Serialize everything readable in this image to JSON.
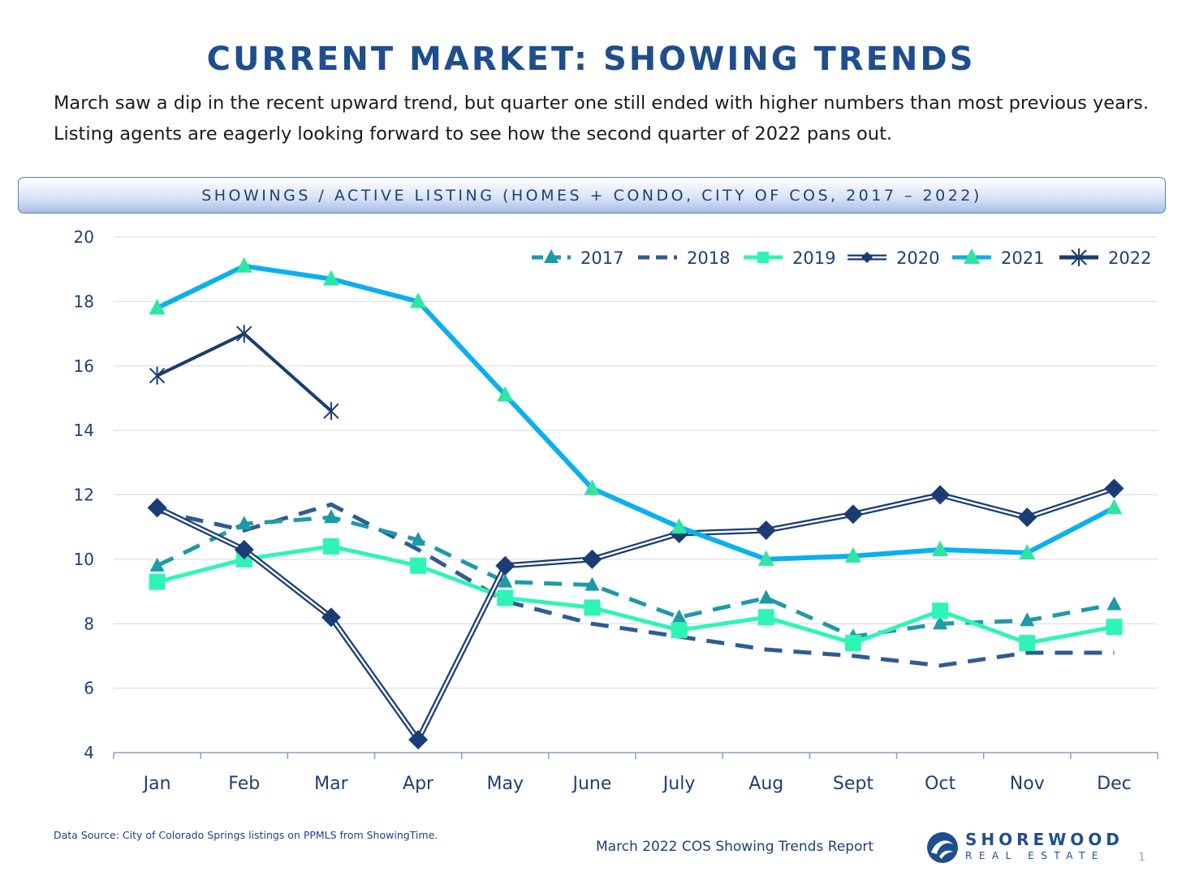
{
  "header": {
    "title": "CURRENT MARKET: SHOWING TRENDS",
    "description_line1": "March saw a dip in the recent upward trend, but quarter one still ended with higher numbers than most previous years.",
    "description_line2": "Listing agents are eagerly looking forward to see how the second quarter of 2022 pans out."
  },
  "chart_banner": "SHOWINGS / ACTIVE LISTING (HOMES + CONDO, CITY OF COS, 2017 – 2022)",
  "chart_data": {
    "type": "line",
    "title": "SHOWINGS / ACTIVE LISTING (HOMES + CONDO, CITY OF COS, 2017 – 2022)",
    "xlabel": "",
    "ylabel": "",
    "ylim": [
      4,
      20
    ],
    "yticks": [
      4,
      6,
      8,
      10,
      12,
      14,
      16,
      18,
      20
    ],
    "grid": true,
    "legend_position": "top-right",
    "categories": [
      "Jan",
      "Feb",
      "Mar",
      "Apr",
      "May",
      "June",
      "July",
      "Aug",
      "Sept",
      "Oct",
      "Nov",
      "Dec"
    ],
    "series": [
      {
        "name": "2017",
        "color": "#1d9aa8",
        "style": "dashed",
        "marker": "triangle",
        "values": [
          9.8,
          11.1,
          11.3,
          10.6,
          9.3,
          9.2,
          8.2,
          8.8,
          7.6,
          8.0,
          8.1,
          8.6
        ]
      },
      {
        "name": "2018",
        "color": "#2f5b94",
        "style": "dashed",
        "marker": "none",
        "values": [
          11.5,
          10.9,
          11.7,
          10.3,
          8.7,
          8.0,
          7.6,
          7.2,
          7.0,
          6.7,
          7.1,
          7.1
        ]
      },
      {
        "name": "2019",
        "color": "#2ef5b5",
        "style": "solid",
        "marker": "square",
        "values": [
          9.3,
          10.0,
          10.4,
          9.8,
          8.8,
          8.5,
          7.8,
          8.2,
          7.4,
          8.4,
          7.4,
          7.9
        ]
      },
      {
        "name": "2020",
        "color": "#1a3c74",
        "style": "double",
        "marker": "diamond",
        "values": [
          11.6,
          10.3,
          8.2,
          4.4,
          9.8,
          10.0,
          10.8,
          10.9,
          11.4,
          12.0,
          11.3,
          12.2
        ]
      },
      {
        "name": "2021",
        "color": "#0ab0ee",
        "style": "solid",
        "marker": "triangle-green",
        "marker_color": "#2ee5a2",
        "values": [
          17.8,
          19.1,
          18.7,
          18.0,
          15.1,
          12.2,
          11.0,
          10.0,
          10.1,
          10.3,
          10.2,
          11.6
        ]
      },
      {
        "name": "2022",
        "color": "#1a3c74",
        "style": "solid",
        "marker": "asterisk",
        "values": [
          15.7,
          17.0,
          14.6,
          null,
          null,
          null,
          null,
          null,
          null,
          null,
          null,
          null
        ]
      }
    ]
  },
  "footer": {
    "data_source": "Data Source: City of Colorado Springs listings on PPMLS from ShowingTime.",
    "report_name": "March 2022 COS Showing Trends Report",
    "logo_line1": "SHOREWOOD",
    "logo_line2": "REAL ESTATE",
    "page_number": "1"
  }
}
